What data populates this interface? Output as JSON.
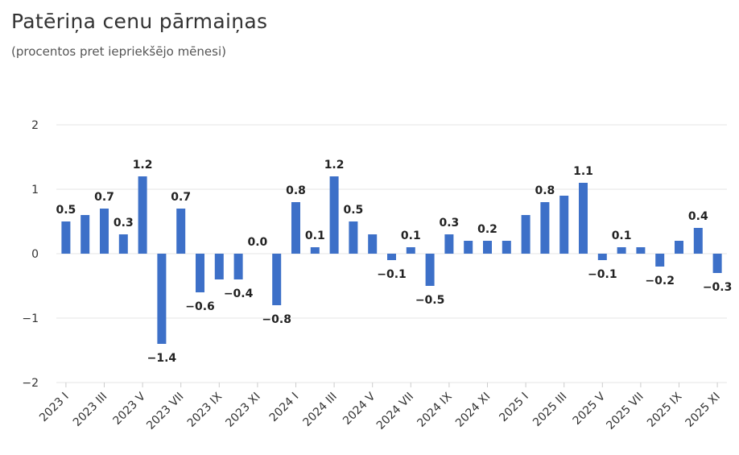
{
  "chart_data": {
    "type": "bar",
    "title": "Patēriņa cenu pārmaiņas",
    "subtitle": "(procentos pret iepriekšējo mēnesi)",
    "xlabel": "",
    "ylabel": "",
    "ylim": [
      -2,
      2
    ],
    "yticks": [
      "2",
      "1",
      "0",
      "−1",
      "−2"
    ],
    "ytick_values": [
      2,
      1,
      0,
      -1,
      -2
    ],
    "grid": true,
    "legend": "none",
    "color": "#3d70c8",
    "categories": [
      "2023 I",
      "2023 II",
      "2023 III",
      "2023 IV",
      "2023 V",
      "2023 VI",
      "2023 VII",
      "2023 VIII",
      "2023 IX",
      "2023 X",
      "2023 XI",
      "2023 XII",
      "2024 I",
      "2024 II",
      "2024 III",
      "2024 IV",
      "2024 V",
      "2024 VI",
      "2024 VII",
      "2024 VIII",
      "2024 IX",
      "2024 X",
      "2024 XI",
      "2024 XII",
      "2025 I",
      "2025 II",
      "2025 III",
      "2025 IV",
      "2025 V",
      "2025 VI",
      "2025 VII",
      "2025 VIII",
      "2025 IX",
      "2025 X",
      "2025 XI"
    ],
    "tick_labels": [
      "2023 I",
      "2023 III",
      "2023 V",
      "2023 VII",
      "2023 IX",
      "2023 XI",
      "2024 I",
      "2024 III",
      "2024 V",
      "2024 VII",
      "2024 IX",
      "2024 XI",
      "2025 I",
      "2025 III",
      "2025 V",
      "2025 VII",
      "2025 IX",
      "2025 XI"
    ],
    "values": [
      0.5,
      0.6,
      0.7,
      0.3,
      1.2,
      -1.4,
      0.7,
      -0.6,
      -0.4,
      -0.4,
      0.0,
      -0.8,
      0.8,
      0.1,
      1.2,
      0.5,
      0.3,
      -0.1,
      0.1,
      -0.5,
      0.3,
      0.2,
      0.2,
      0.2,
      0.6,
      0.8,
      0.9,
      1.1,
      -0.1,
      0.1,
      0.1,
      -0.2,
      0.2,
      0.4,
      -0.3
    ],
    "data_labels": [
      "0.5",
      "",
      "0.7",
      "0.3",
      "1.2",
      "−1.4",
      "0.7",
      "−0.6",
      "",
      "−0.4",
      "0.0",
      "−0.8",
      "0.8",
      "0.1",
      "1.2",
      "0.5",
      "",
      "−0.1",
      "0.1",
      "−0.5",
      "0.3",
      "",
      "0.2",
      "",
      "",
      "0.8",
      "",
      "1.1",
      "−0.1",
      "0.1",
      "",
      "−0.2",
      "",
      "0.4",
      "−0.3"
    ]
  }
}
